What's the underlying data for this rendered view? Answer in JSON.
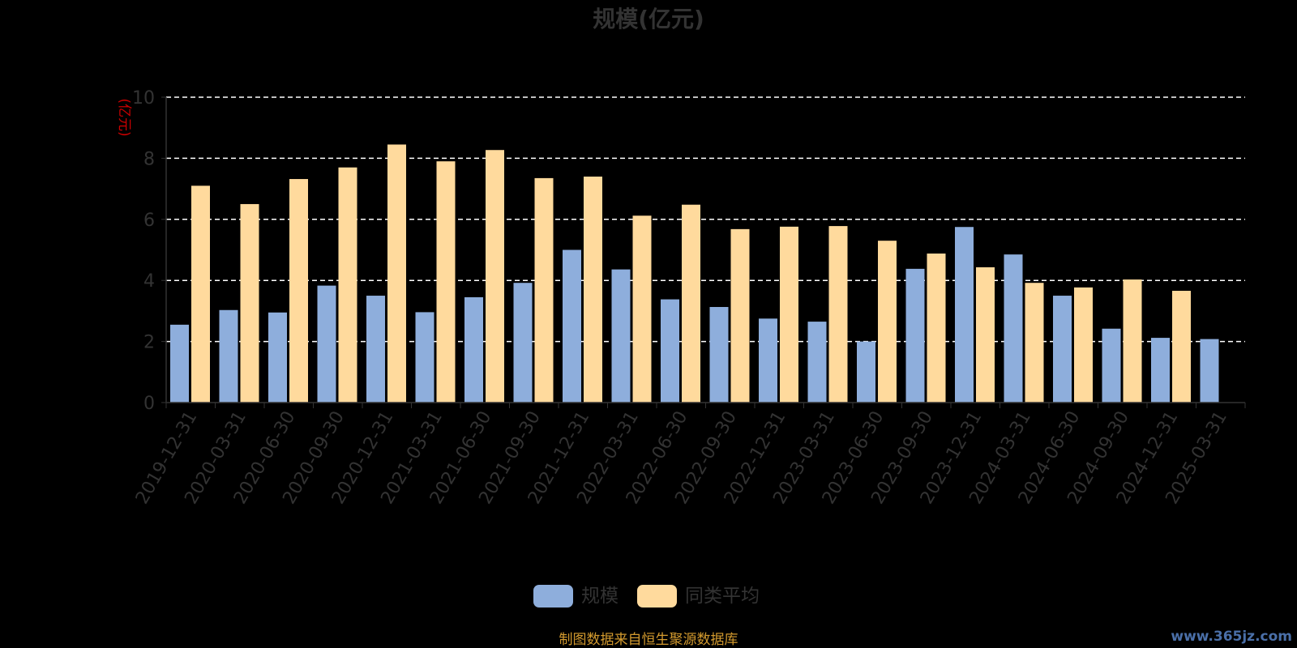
{
  "chart_data": {
    "type": "bar",
    "title": "规模(亿元)",
    "ylabel": "(亿元)",
    "ylim": [
      0,
      10
    ],
    "yticks": [
      0,
      2,
      4,
      6,
      8,
      10
    ],
    "grid": true,
    "legend_position": "bottom",
    "categories": [
      "2019-12-31",
      "2020-03-31",
      "2020-06-30",
      "2020-09-30",
      "2020-12-31",
      "2021-03-31",
      "2021-06-30",
      "2021-09-30",
      "2021-12-31",
      "2022-03-31",
      "2022-06-30",
      "2022-09-30",
      "2022-12-31",
      "2023-03-31",
      "2023-06-30",
      "2023-09-30",
      "2023-12-31",
      "2024-03-31",
      "2024-06-30",
      "2024-09-30",
      "2024-12-31",
      "2025-03-31"
    ],
    "series": [
      {
        "name": "规模",
        "color": "#8eaedc",
        "values": [
          2.55,
          3.03,
          2.95,
          3.83,
          3.5,
          2.96,
          3.45,
          3.92,
          5.0,
          4.36,
          3.38,
          3.13,
          2.75,
          2.65,
          2.0,
          4.38,
          5.75,
          4.85,
          3.5,
          2.42,
          2.12,
          2.08
        ]
      },
      {
        "name": "同类平均",
        "color": "#ffda9d",
        "values": [
          7.1,
          6.5,
          7.32,
          7.7,
          8.45,
          7.9,
          8.27,
          7.35,
          7.4,
          6.12,
          6.48,
          5.68,
          5.76,
          5.78,
          5.3,
          4.88,
          4.43,
          3.92,
          3.77,
          4.03,
          3.66,
          null
        ]
      }
    ]
  },
  "colors": {
    "background": "#000000",
    "title": "#333333",
    "axis_text": "#333333",
    "unit_label": "#cc0000",
    "grid": "#ffffff",
    "axis_line": "#333333",
    "source": "#d39a2e",
    "watermark": "#4a6fa8"
  },
  "footer": {
    "source": "制图数据来自恒生聚源数据库",
    "watermark": "www.365jz.com"
  }
}
